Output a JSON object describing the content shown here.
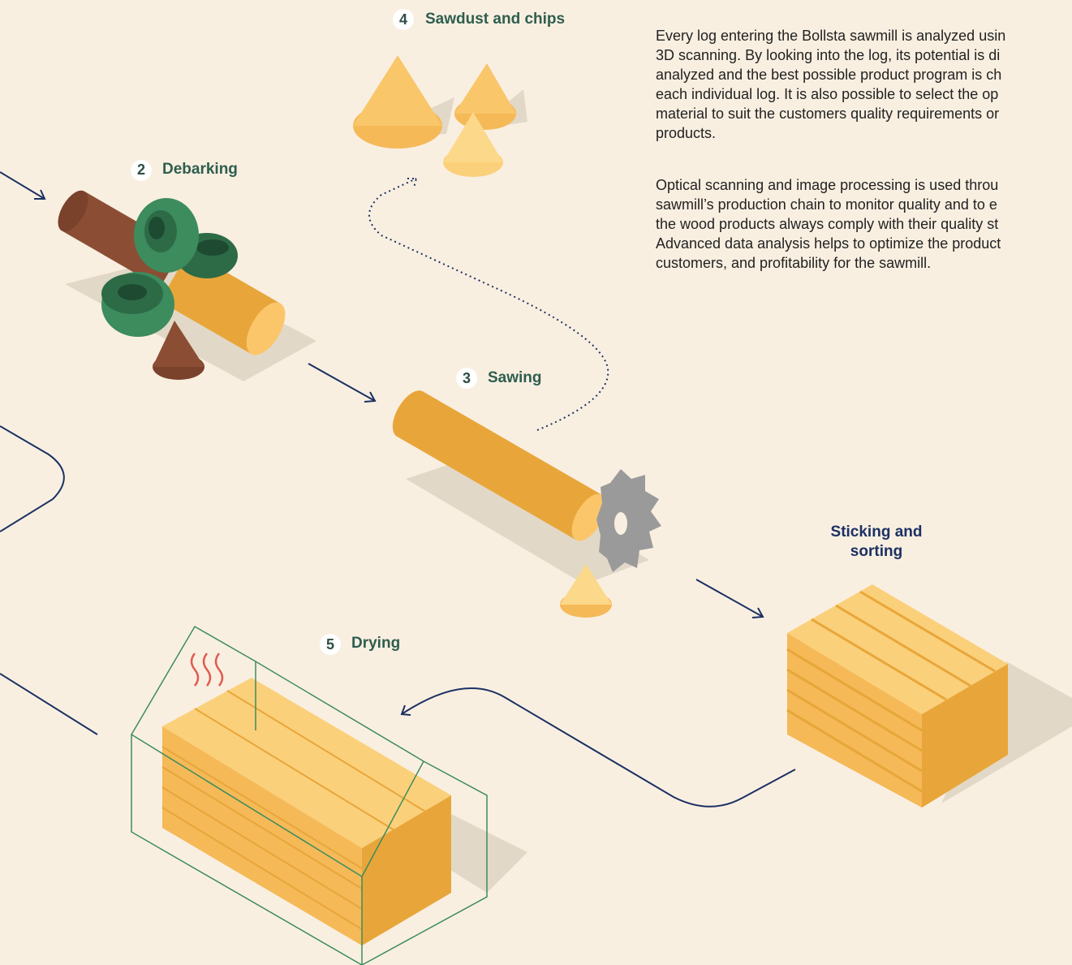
{
  "steps": [
    {
      "number": "2",
      "label": "Debarking"
    },
    {
      "number": "3",
      "label": "Sawing"
    },
    {
      "number": "4",
      "label": "Sawdust and chips"
    },
    {
      "number": "5",
      "label": "Drying"
    }
  ],
  "sticking_label": [
    "Sticking and",
    "sorting"
  ],
  "paragraphs": [
    [
      "Every log entering the Bollsta sawmill is analyzed usin",
      "3D scanning. By looking into the log, its potential is di",
      "analyzed and the best possible product program is ch",
      "each individual log. It is also possible to select the op",
      "material to suit the customers quality requirements or",
      "products."
    ],
    [
      "Optical scanning and image processing is used throu",
      "sawmill’s production chain to monitor quality and to e",
      "the wood products always comply with their quality st",
      "Advanced data analysis helps to optimize the product",
      "customers, and profitability for the sawmill."
    ]
  ]
}
